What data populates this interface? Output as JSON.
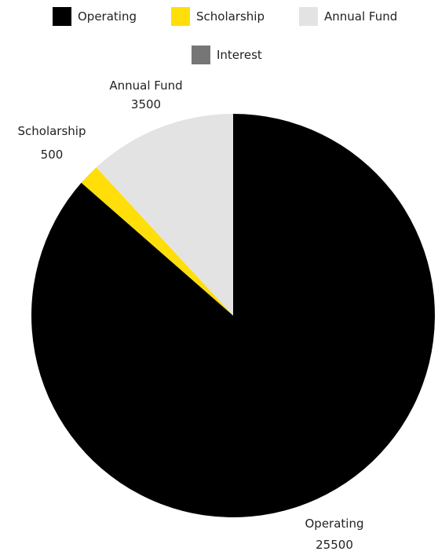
{
  "chart_data": {
    "type": "pie",
    "title": "",
    "categories": [
      "Operating",
      "Scholarship",
      "Annual Fund",
      "Interest"
    ],
    "values": [
      25500,
      500,
      3500,
      0
    ],
    "colors": [
      "#000000",
      "#FFDE0A",
      "#E3E3E3",
      "#767676"
    ],
    "legend": {
      "position": "top",
      "items": [
        {
          "label": "Operating",
          "color": "#000000"
        },
        {
          "label": "Scholarship",
          "color": "#FFDE0A"
        },
        {
          "label": "Annual Fund",
          "color": "#E3E3E3"
        },
        {
          "label": "Interest",
          "color": "#767676"
        }
      ]
    },
    "data_labels": [
      {
        "category": "Operating",
        "value": "25500"
      },
      {
        "category": "Scholarship",
        "value": "500"
      },
      {
        "category": "Annual Fund",
        "value": "3500"
      }
    ]
  }
}
